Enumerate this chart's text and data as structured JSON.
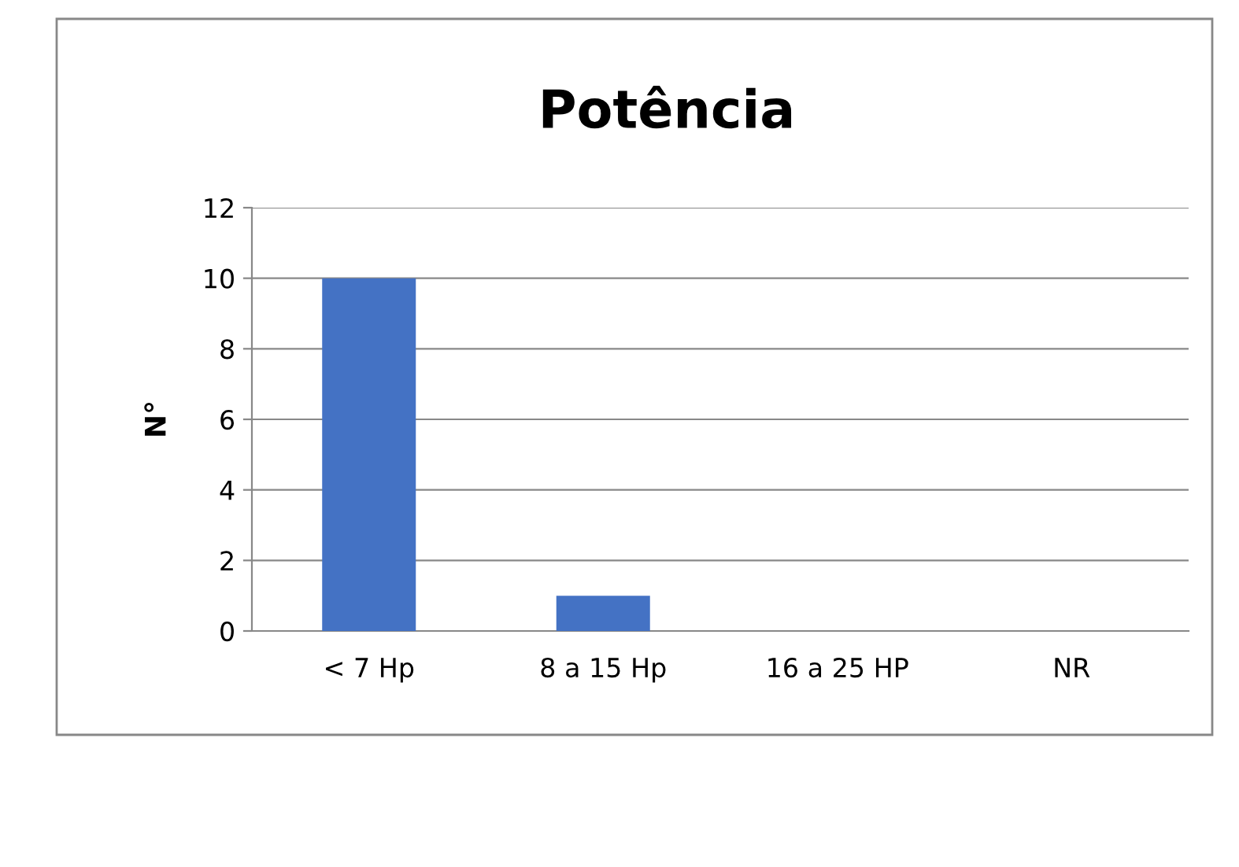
{
  "chart_data": {
    "type": "bar",
    "title": "Potência",
    "ylabel": "N°",
    "categories": [
      "< 7 Hp",
      "8 a 15 Hp",
      "16 a 25 HP",
      "NR"
    ],
    "values": [
      10,
      1,
      0,
      0
    ],
    "color": "#4472c4",
    "ylim": [
      0,
      12
    ],
    "yticks": [
      0,
      2,
      4,
      6,
      8,
      10,
      12
    ],
    "grid": "y",
    "legend": false
  }
}
